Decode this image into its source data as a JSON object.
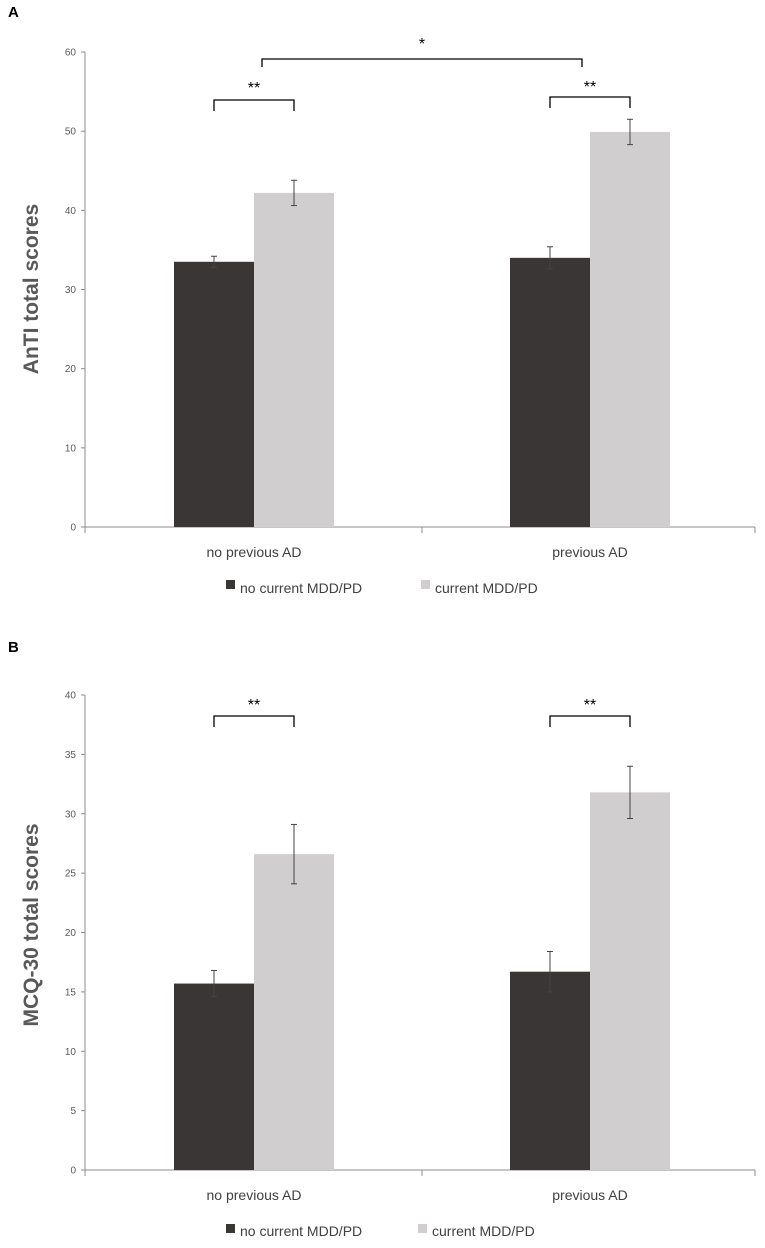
{
  "chart_data": [
    {
      "type": "bar",
      "panel": "A",
      "ylabel": "AnTI total scores",
      "xlabel": "",
      "ylim": [
        0,
        60
      ],
      "yticks": [
        0,
        10,
        20,
        30,
        40,
        50,
        60
      ],
      "categories": [
        "no previous AD",
        "previous AD"
      ],
      "series": [
        {
          "name": "no current MDD/PD",
          "color": "#3a3635",
          "values": [
            33.5,
            34.0
          ],
          "errors": [
            0.7,
            1.4
          ]
        },
        {
          "name": "current MDD/PD",
          "color": "#d0cecf",
          "values": [
            42.2,
            49.9
          ],
          "errors": [
            1.6,
            1.6
          ]
        }
      ],
      "significance": [
        {
          "label": "**",
          "between": "within no previous AD"
        },
        {
          "label": "**",
          "between": "within previous AD"
        },
        {
          "label": "*",
          "between": "no previous AD vs previous AD"
        }
      ],
      "legend": {
        "position": "bottom-center"
      }
    },
    {
      "type": "bar",
      "panel": "B",
      "ylabel": "MCQ-30 total scores",
      "xlabel": "",
      "ylim": [
        0,
        40
      ],
      "yticks": [
        0,
        5,
        10,
        15,
        20,
        25,
        30,
        35,
        40
      ],
      "categories": [
        "no previous AD",
        "previous AD"
      ],
      "series": [
        {
          "name": "no current MDD/PD",
          "color": "#3a3635",
          "values": [
            15.7,
            16.7
          ],
          "errors": [
            1.1,
            1.7
          ]
        },
        {
          "name": "current MDD/PD",
          "color": "#d0cecf",
          "values": [
            26.6,
            31.8
          ],
          "errors": [
            2.5,
            2.2
          ]
        }
      ],
      "significance": [
        {
          "label": "**",
          "between": "within no previous AD"
        },
        {
          "label": "**",
          "between": "within previous AD"
        }
      ],
      "legend": {
        "position": "bottom-center"
      }
    }
  ]
}
